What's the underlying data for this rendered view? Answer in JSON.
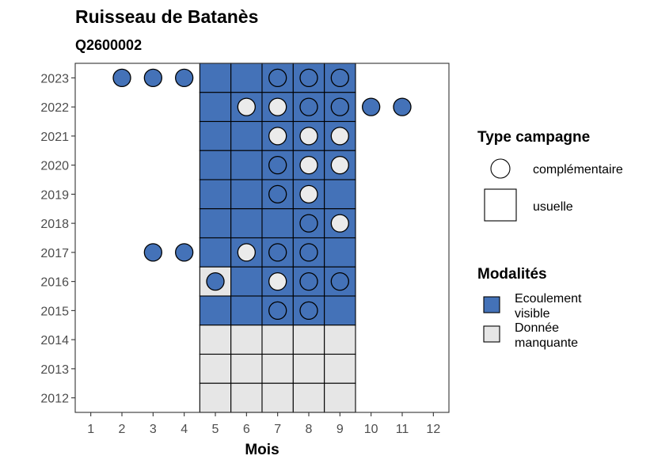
{
  "chart_data": {
    "type": "heatmap",
    "title": "Ruisseau de Batanès",
    "subtitle": "Q2600002",
    "xlabel": "Mois",
    "ylabel": "",
    "x_ticks": [
      "1",
      "2",
      "3",
      "4",
      "5",
      "6",
      "7",
      "8",
      "9",
      "10",
      "11",
      "12"
    ],
    "y_ticks": [
      "2012",
      "2013",
      "2014",
      "2015",
      "2016",
      "2017",
      "2018",
      "2019",
      "2020",
      "2021",
      "2022",
      "2023"
    ],
    "xlim": [
      0.5,
      12.5
    ],
    "ylim": [
      2011.5,
      2023.5
    ],
    "colors": {
      "Ecoulement visible": "#4472b8",
      "Donnée manquante": "#e6e6e6",
      "complementaire_fill": "#ebebeb"
    },
    "legend": {
      "campaign_title": "Type campagne",
      "campaign_items": [
        {
          "shape": "circle",
          "label": "complémentaire"
        },
        {
          "shape": "square",
          "label": "usuelle"
        }
      ],
      "modalites_title": "Modalités",
      "modalites_items": [
        {
          "label_lines": [
            "Ecoulement",
            "visible"
          ],
          "modalite": "Ecoulement visible"
        },
        {
          "label_lines": [
            "Donnée",
            "manquante"
          ],
          "modalite": "Donnée manquante"
        }
      ]
    },
    "usuelle": [
      {
        "year": 2023,
        "month": 5,
        "modalite": "Ecoulement visible"
      },
      {
        "year": 2023,
        "month": 6,
        "modalite": "Ecoulement visible"
      },
      {
        "year": 2023,
        "month": 7,
        "modalite": "Ecoulement visible"
      },
      {
        "year": 2023,
        "month": 8,
        "modalite": "Ecoulement visible"
      },
      {
        "year": 2023,
        "month": 9,
        "modalite": "Ecoulement visible"
      },
      {
        "year": 2022,
        "month": 5,
        "modalite": "Ecoulement visible"
      },
      {
        "year": 2022,
        "month": 6,
        "modalite": "Ecoulement visible"
      },
      {
        "year": 2022,
        "month": 7,
        "modalite": "Ecoulement visible"
      },
      {
        "year": 2022,
        "month": 8,
        "modalite": "Ecoulement visible"
      },
      {
        "year": 2022,
        "month": 9,
        "modalite": "Ecoulement visible"
      },
      {
        "year": 2021,
        "month": 5,
        "modalite": "Ecoulement visible"
      },
      {
        "year": 2021,
        "month": 6,
        "modalite": "Ecoulement visible"
      },
      {
        "year": 2021,
        "month": 7,
        "modalite": "Ecoulement visible"
      },
      {
        "year": 2021,
        "month": 8,
        "modalite": "Ecoulement visible"
      },
      {
        "year": 2021,
        "month": 9,
        "modalite": "Ecoulement visible"
      },
      {
        "year": 2020,
        "month": 5,
        "modalite": "Ecoulement visible"
      },
      {
        "year": 2020,
        "month": 6,
        "modalite": "Ecoulement visible"
      },
      {
        "year": 2020,
        "month": 7,
        "modalite": "Ecoulement visible"
      },
      {
        "year": 2020,
        "month": 8,
        "modalite": "Ecoulement visible"
      },
      {
        "year": 2020,
        "month": 9,
        "modalite": "Ecoulement visible"
      },
      {
        "year": 2019,
        "month": 5,
        "modalite": "Ecoulement visible"
      },
      {
        "year": 2019,
        "month": 6,
        "modalite": "Ecoulement visible"
      },
      {
        "year": 2019,
        "month": 7,
        "modalite": "Ecoulement visible"
      },
      {
        "year": 2019,
        "month": 8,
        "modalite": "Ecoulement visible"
      },
      {
        "year": 2019,
        "month": 9,
        "modalite": "Ecoulement visible"
      },
      {
        "year": 2018,
        "month": 5,
        "modalite": "Ecoulement visible"
      },
      {
        "year": 2018,
        "month": 6,
        "modalite": "Ecoulement visible"
      },
      {
        "year": 2018,
        "month": 7,
        "modalite": "Ecoulement visible"
      },
      {
        "year": 2018,
        "month": 8,
        "modalite": "Ecoulement visible"
      },
      {
        "year": 2018,
        "month": 9,
        "modalite": "Ecoulement visible"
      },
      {
        "year": 2017,
        "month": 5,
        "modalite": "Ecoulement visible"
      },
      {
        "year": 2017,
        "month": 6,
        "modalite": "Ecoulement visible"
      },
      {
        "year": 2017,
        "month": 7,
        "modalite": "Ecoulement visible"
      },
      {
        "year": 2017,
        "month": 8,
        "modalite": "Ecoulement visible"
      },
      {
        "year": 2017,
        "month": 9,
        "modalite": "Ecoulement visible"
      },
      {
        "year": 2016,
        "month": 5,
        "modalite": "Donnée manquante"
      },
      {
        "year": 2016,
        "month": 6,
        "modalite": "Ecoulement visible"
      },
      {
        "year": 2016,
        "month": 7,
        "modalite": "Ecoulement visible"
      },
      {
        "year": 2016,
        "month": 8,
        "modalite": "Ecoulement visible"
      },
      {
        "year": 2016,
        "month": 9,
        "modalite": "Ecoulement visible"
      },
      {
        "year": 2015,
        "month": 5,
        "modalite": "Ecoulement visible"
      },
      {
        "year": 2015,
        "month": 6,
        "modalite": "Ecoulement visible"
      },
      {
        "year": 2015,
        "month": 7,
        "modalite": "Ecoulement visible"
      },
      {
        "year": 2015,
        "month": 8,
        "modalite": "Ecoulement visible"
      },
      {
        "year": 2015,
        "month": 9,
        "modalite": "Ecoulement visible"
      },
      {
        "year": 2014,
        "month": 5,
        "modalite": "Donnée manquante"
      },
      {
        "year": 2014,
        "month": 6,
        "modalite": "Donnée manquante"
      },
      {
        "year": 2014,
        "month": 7,
        "modalite": "Donnée manquante"
      },
      {
        "year": 2014,
        "month": 8,
        "modalite": "Donnée manquante"
      },
      {
        "year": 2014,
        "month": 9,
        "modalite": "Donnée manquante"
      },
      {
        "year": 2013,
        "month": 5,
        "modalite": "Donnée manquante"
      },
      {
        "year": 2013,
        "month": 6,
        "modalite": "Donnée manquante"
      },
      {
        "year": 2013,
        "month": 7,
        "modalite": "Donnée manquante"
      },
      {
        "year": 2013,
        "month": 8,
        "modalite": "Donnée manquante"
      },
      {
        "year": 2013,
        "month": 9,
        "modalite": "Donnée manquante"
      },
      {
        "year": 2012,
        "month": 5,
        "modalite": "Donnée manquante"
      },
      {
        "year": 2012,
        "month": 6,
        "modalite": "Donnée manquante"
      },
      {
        "year": 2012,
        "month": 7,
        "modalite": "Donnée manquante"
      },
      {
        "year": 2012,
        "month": 8,
        "modalite": "Donnée manquante"
      },
      {
        "year": 2012,
        "month": 9,
        "modalite": "Donnée manquante"
      }
    ],
    "complementaire": [
      {
        "year": 2023,
        "month": 2,
        "modalite": "Ecoulement visible"
      },
      {
        "year": 2023,
        "month": 3,
        "modalite": "Ecoulement visible"
      },
      {
        "year": 2023,
        "month": 4,
        "modalite": "Ecoulement visible"
      },
      {
        "year": 2023,
        "month": 7,
        "modalite": "Ecoulement visible"
      },
      {
        "year": 2023,
        "month": 8,
        "modalite": "Ecoulement visible"
      },
      {
        "year": 2023,
        "month": 9,
        "modalite": "Ecoulement visible"
      },
      {
        "year": 2022,
        "month": 6,
        "modalite": "Donnée manquante"
      },
      {
        "year": 2022,
        "month": 7,
        "modalite": "Donnée manquante"
      },
      {
        "year": 2022,
        "month": 8,
        "modalite": "Ecoulement visible"
      },
      {
        "year": 2022,
        "month": 9,
        "modalite": "Ecoulement visible"
      },
      {
        "year": 2022,
        "month": 10,
        "modalite": "Ecoulement visible"
      },
      {
        "year": 2022,
        "month": 11,
        "modalite": "Ecoulement visible"
      },
      {
        "year": 2021,
        "month": 7,
        "modalite": "Donnée manquante"
      },
      {
        "year": 2021,
        "month": 8,
        "modalite": "Donnée manquante"
      },
      {
        "year": 2021,
        "month": 9,
        "modalite": "Donnée manquante"
      },
      {
        "year": 2020,
        "month": 7,
        "modalite": "Ecoulement visible"
      },
      {
        "year": 2020,
        "month": 8,
        "modalite": "Donnée manquante"
      },
      {
        "year": 2020,
        "month": 9,
        "modalite": "Donnée manquante"
      },
      {
        "year": 2019,
        "month": 7,
        "modalite": "Ecoulement visible"
      },
      {
        "year": 2019,
        "month": 8,
        "modalite": "Donnée manquante"
      },
      {
        "year": 2018,
        "month": 8,
        "modalite": "Ecoulement visible"
      },
      {
        "year": 2018,
        "month": 9,
        "modalite": "Donnée manquante"
      },
      {
        "year": 2017,
        "month": 3,
        "modalite": "Ecoulement visible"
      },
      {
        "year": 2017,
        "month": 4,
        "modalite": "Ecoulement visible"
      },
      {
        "year": 2017,
        "month": 6,
        "modalite": "Donnée manquante"
      },
      {
        "year": 2017,
        "month": 7,
        "modalite": "Ecoulement visible"
      },
      {
        "year": 2017,
        "month": 8,
        "modalite": "Ecoulement visible"
      },
      {
        "year": 2016,
        "month": 5,
        "modalite": "Ecoulement visible"
      },
      {
        "year": 2016,
        "month": 7,
        "modalite": "Donnée manquante"
      },
      {
        "year": 2016,
        "month": 8,
        "modalite": "Ecoulement visible"
      },
      {
        "year": 2016,
        "month": 9,
        "modalite": "Ecoulement visible"
      },
      {
        "year": 2015,
        "month": 7,
        "modalite": "Ecoulement visible"
      },
      {
        "year": 2015,
        "month": 8,
        "modalite": "Ecoulement visible"
      }
    ],
    "grid": false,
    "legend_position": "right"
  }
}
